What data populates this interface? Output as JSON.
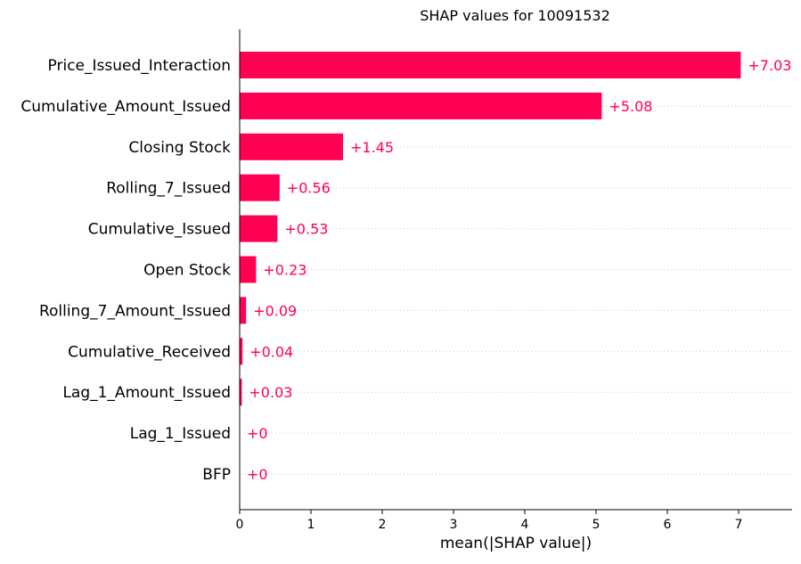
{
  "chart_data": {
    "type": "bar",
    "orientation": "horizontal",
    "title": "SHAP values for 10091532",
    "xlabel": "mean(|SHAP value|)",
    "ylabel": "",
    "xlim": [
      0,
      7.75
    ],
    "xticks": [
      0,
      1,
      2,
      3,
      4,
      5,
      6,
      7
    ],
    "grid": "dotted horizontal row lines",
    "colors": {
      "bar": "#ff0052",
      "label": "#ff0052",
      "axis": "#000000",
      "grid": "#cccccc"
    },
    "categories": [
      "Price_Issued_Interaction",
      "Cumulative_Amount_Issued",
      "Closing Stock",
      "Rolling_7_Issued",
      "Cumulative_Issued",
      "Open Stock",
      "Rolling_7_Amount_Issued",
      "Cumulative_Received",
      "Lag_1_Amount_Issued",
      "Lag_1_Issued",
      "BFP"
    ],
    "values": [
      7.03,
      5.08,
      1.45,
      0.56,
      0.53,
      0.23,
      0.09,
      0.04,
      0.03,
      0,
      0
    ],
    "value_labels": [
      "+7.03",
      "+5.08",
      "+1.45",
      "+0.56",
      "+0.53",
      "+0.23",
      "+0.09",
      "+0.04",
      "+0.03",
      "+0",
      "+0"
    ]
  }
}
